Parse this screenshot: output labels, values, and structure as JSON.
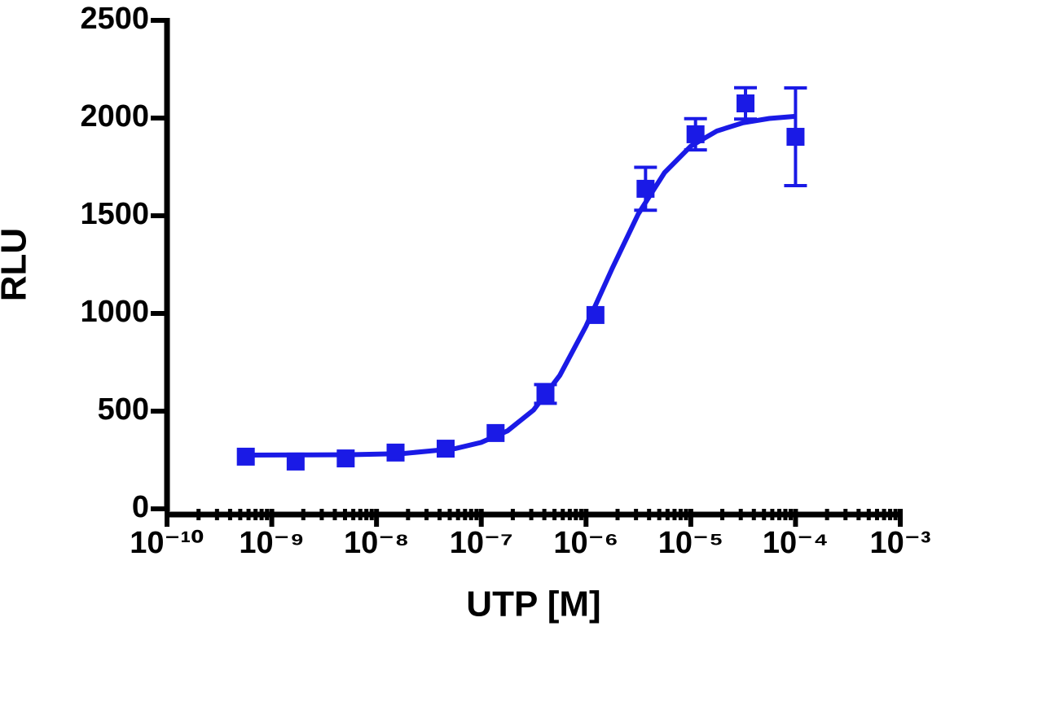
{
  "chart_data": {
    "type": "scatter",
    "x_label": "UTP [M]",
    "y_label": "RLU",
    "xscale": "log",
    "xlim": [
      1e-10,
      0.001
    ],
    "xticks": [
      {
        "value": 1e-10,
        "label": "10⁻¹⁰"
      },
      {
        "value": 1e-09,
        "label": "10⁻⁹"
      },
      {
        "value": 1e-08,
        "label": "10⁻⁸"
      },
      {
        "value": 1e-07,
        "label": "10⁻⁷"
      },
      {
        "value": 1e-06,
        "label": "10⁻⁶"
      },
      {
        "value": 1e-05,
        "label": "10⁻⁵"
      },
      {
        "value": 0.0001,
        "label": "10⁻⁴"
      },
      {
        "value": 0.001,
        "label": "10⁻³"
      }
    ],
    "xminorticks": [
      2e-10,
      3e-10,
      4e-10,
      5e-10,
      6e-10,
      7e-10,
      8e-10,
      9e-10,
      2e-09,
      3e-09,
      4e-09,
      5e-09,
      6e-09,
      7e-09,
      8e-09,
      9e-09,
      2e-08,
      3e-08,
      4e-08,
      5e-08,
      6e-08,
      7e-08,
      8e-08,
      9e-08,
      2e-07,
      3e-07,
      4e-07,
      5e-07,
      6e-07,
      7e-07,
      8e-07,
      9e-07,
      2e-06,
      3e-06,
      4e-06,
      5e-06,
      6e-06,
      7e-06,
      8e-06,
      9e-06,
      2e-05,
      3e-05,
      4e-05,
      5e-05,
      6e-05,
      7e-05,
      8e-05,
      9e-05,
      0.0002,
      0.0003,
      0.0004,
      0.0005,
      0.0006,
      0.0007,
      0.0008,
      0.0009
    ],
    "ylim": [
      0,
      2500
    ],
    "yticks": [
      0,
      500,
      1000,
      1500,
      2000,
      2500
    ],
    "series": [
      {
        "color": "#1a1ae6",
        "x": [
          5.65e-10,
          1.69e-09,
          5.08e-09,
          1.52e-08,
          4.57e-08,
          1.37e-07,
          4.1e-07,
          1.23e-06,
          3.7e-06,
          1.11e-05,
          3.33e-05,
          0.0001
        ],
        "values": [
          267,
          242,
          258,
          288,
          308,
          388,
          588,
          992,
          1638,
          1917,
          2075,
          1904
        ],
        "errors": [
          null,
          null,
          null,
          null,
          null,
          null,
          48,
          null,
          110,
          80,
          80,
          250
        ]
      }
    ],
    "fit": {
      "color": "#1a1ae6",
      "x": [
        5.62e-10,
        1.78e-09,
        5.62e-09,
        1.78e-08,
        5.62e-08,
        1e-07,
        1.78e-07,
        3.16e-07,
        5.62e-07,
        1e-06,
        1.78e-06,
        3.16e-06,
        5.62e-06,
        1e-05,
        1.78e-05,
        3.16e-05,
        5.62e-05,
        0.0001
      ],
      "values": [
        275,
        276,
        277,
        283,
        308,
        340,
        399,
        506,
        683,
        935,
        1231,
        1510,
        1721,
        1856,
        1934,
        1976,
        1998,
        2009
      ]
    }
  }
}
